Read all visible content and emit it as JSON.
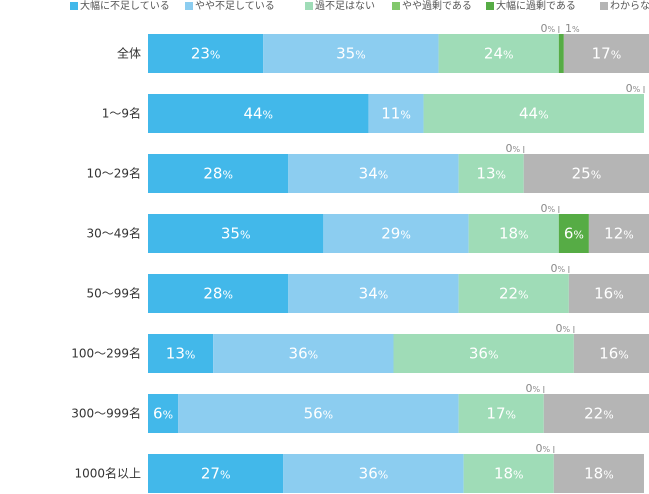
{
  "chart_data": {
    "type": "bar",
    "orientation": "horizontal",
    "stacked": true,
    "categories": [
      "全体",
      "1～9名",
      "10～29名",
      "30～49名",
      "50～99名",
      "100～299名",
      "300～999名",
      "1000名以上"
    ],
    "series": [
      {
        "name": "大幅に不足している",
        "color": "#42b8ea",
        "values": [
          23,
          44,
          28,
          35,
          28,
          13,
          6,
          27
        ]
      },
      {
        "name": "やや不足している",
        "color": "#8ccdf0",
        "values": [
          35,
          11,
          34,
          29,
          34,
          36,
          56,
          36
        ]
      },
      {
        "name": "過不足はない",
        "color": "#9fdcb7",
        "values": [
          24,
          44,
          13,
          18,
          22,
          36,
          17,
          18
        ]
      },
      {
        "name": "やや過剰である",
        "color": "#82c86c",
        "values": [
          0,
          0,
          0,
          0,
          0,
          0,
          0,
          0
        ]
      },
      {
        "name": "大幅に過剰である",
        "color": "#56ac45",
        "values": [
          1,
          0,
          0,
          6,
          0,
          0,
          0,
          0
        ]
      },
      {
        "name": "わからない",
        "color": "#b5b5b5",
        "values": [
          17,
          0,
          25,
          12,
          16,
          16,
          22,
          18
        ]
      }
    ],
    "unit": "%",
    "xlim": [
      0,
      100
    ],
    "legend": "top",
    "grid": false
  }
}
